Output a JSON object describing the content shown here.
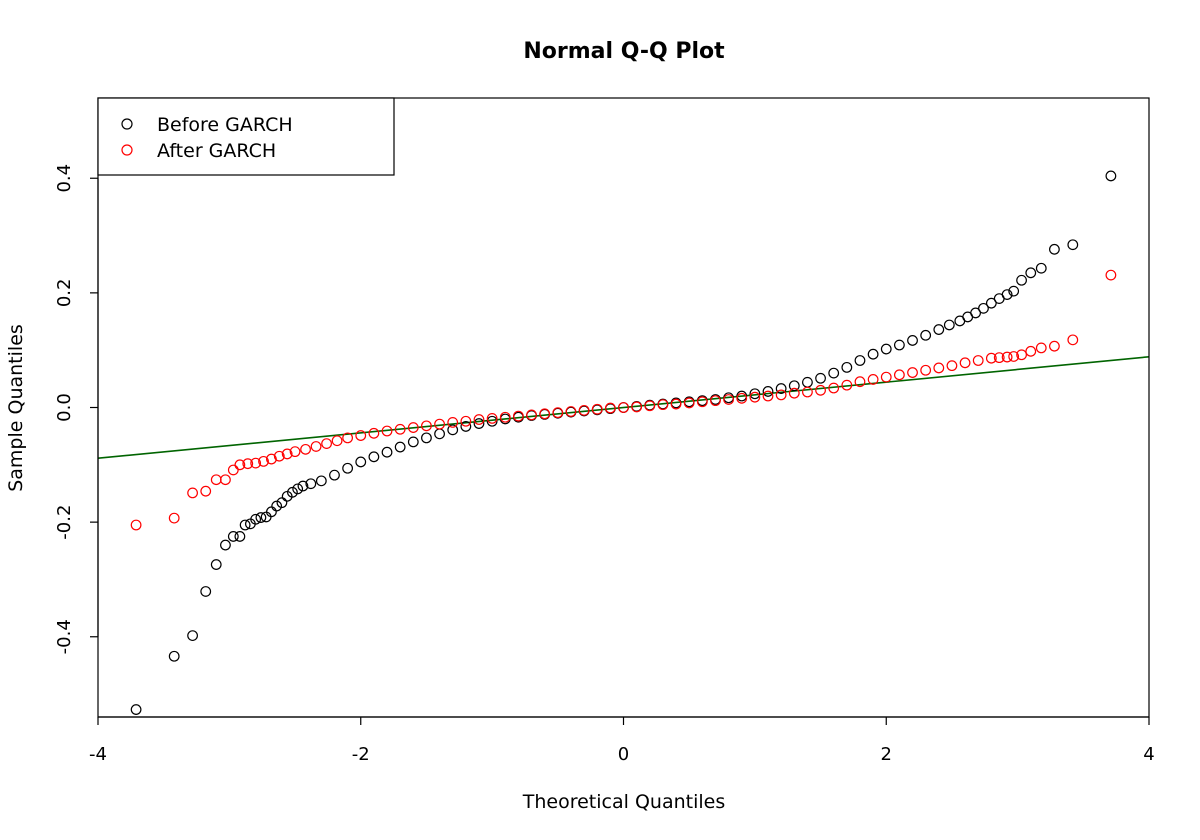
{
  "chart_data": {
    "type": "scatter",
    "title": "Normal Q-Q Plot",
    "xlabel": "Theoretical Quantiles",
    "ylabel": "Sample Quantiles",
    "xlim": [
      -4,
      4
    ],
    "ylim": [
      -0.54,
      0.54
    ],
    "x_ticks": [
      -4,
      -2,
      0,
      2,
      4
    ],
    "x_tick_labels": [
      "-4",
      "-2",
      "0",
      "2",
      "4"
    ],
    "y_ticks": [
      -0.4,
      -0.2,
      0.0,
      0.2,
      0.4
    ],
    "y_tick_labels": [
      "-0.4",
      "-0.2",
      "0.0",
      "0.2",
      "0.4"
    ],
    "grid": false,
    "legend_position": "top-left",
    "series": [
      {
        "name": "Before GARCH",
        "color": "#000000",
        "marker": "open-circle",
        "points": [
          [
            -3.71,
            -0.527
          ],
          [
            -3.42,
            -0.434
          ],
          [
            -3.28,
            -0.398
          ],
          [
            -3.18,
            -0.321
          ],
          [
            -3.1,
            -0.274
          ],
          [
            -3.03,
            -0.24
          ],
          [
            -2.97,
            -0.225
          ],
          [
            -2.92,
            -0.225
          ],
          [
            -2.88,
            -0.205
          ],
          [
            -2.84,
            -0.203
          ],
          [
            -2.8,
            -0.195
          ],
          [
            -2.76,
            -0.192
          ],
          [
            -2.72,
            -0.191
          ],
          [
            -2.68,
            -0.182
          ],
          [
            -2.64,
            -0.172
          ],
          [
            -2.6,
            -0.166
          ],
          [
            -2.56,
            -0.155
          ],
          [
            -2.52,
            -0.148
          ],
          [
            -2.48,
            -0.142
          ],
          [
            -2.44,
            -0.137
          ],
          [
            -2.38,
            -0.133
          ],
          [
            -2.3,
            -0.128
          ],
          [
            -2.2,
            -0.118
          ],
          [
            -2.1,
            -0.106
          ],
          [
            -2.0,
            -0.095
          ],
          [
            -1.9,
            -0.086
          ],
          [
            -1.8,
            -0.078
          ],
          [
            -1.7,
            -0.069
          ],
          [
            -1.6,
            -0.06
          ],
          [
            -1.5,
            -0.053
          ],
          [
            -1.4,
            -0.046
          ],
          [
            -1.3,
            -0.039
          ],
          [
            -1.2,
            -0.033
          ],
          [
            -1.1,
            -0.028
          ],
          [
            -1.0,
            -0.024
          ],
          [
            -0.9,
            -0.02
          ],
          [
            -0.8,
            -0.017
          ],
          [
            -0.7,
            -0.014
          ],
          [
            -0.6,
            -0.012
          ],
          [
            -0.5,
            -0.01
          ],
          [
            -0.4,
            -0.008
          ],
          [
            -0.3,
            -0.006
          ],
          [
            -0.2,
            -0.004
          ],
          [
            -0.1,
            -0.002
          ],
          [
            0.0,
            0.0
          ],
          [
            0.1,
            0.002
          ],
          [
            0.2,
            0.004
          ],
          [
            0.3,
            0.006
          ],
          [
            0.4,
            0.008
          ],
          [
            0.5,
            0.01
          ],
          [
            0.6,
            0.012
          ],
          [
            0.7,
            0.014
          ],
          [
            0.8,
            0.017
          ],
          [
            0.9,
            0.02
          ],
          [
            1.0,
            0.024
          ],
          [
            1.1,
            0.028
          ],
          [
            1.2,
            0.033
          ],
          [
            1.3,
            0.038
          ],
          [
            1.4,
            0.044
          ],
          [
            1.5,
            0.051
          ],
          [
            1.6,
            0.06
          ],
          [
            1.7,
            0.07
          ],
          [
            1.8,
            0.082
          ],
          [
            1.9,
            0.093
          ],
          [
            2.0,
            0.102
          ],
          [
            2.1,
            0.109
          ],
          [
            2.2,
            0.117
          ],
          [
            2.3,
            0.126
          ],
          [
            2.4,
            0.136
          ],
          [
            2.48,
            0.144
          ],
          [
            2.56,
            0.151
          ],
          [
            2.62,
            0.158
          ],
          [
            2.68,
            0.165
          ],
          [
            2.74,
            0.173
          ],
          [
            2.8,
            0.182
          ],
          [
            2.86,
            0.19
          ],
          [
            2.92,
            0.197
          ],
          [
            2.97,
            0.203
          ],
          [
            3.03,
            0.222
          ],
          [
            3.1,
            0.235
          ],
          [
            3.18,
            0.243
          ],
          [
            3.28,
            0.276
          ],
          [
            3.42,
            0.284
          ],
          [
            3.71,
            0.404
          ]
        ]
      },
      {
        "name": "After GARCH",
        "color": "#ff0000",
        "marker": "open-circle",
        "points": [
          [
            -3.71,
            -0.205
          ],
          [
            -3.42,
            -0.193
          ],
          [
            -3.28,
            -0.149
          ],
          [
            -3.18,
            -0.146
          ],
          [
            -3.1,
            -0.126
          ],
          [
            -3.03,
            -0.126
          ],
          [
            -2.97,
            -0.109
          ],
          [
            -2.92,
            -0.1
          ],
          [
            -2.86,
            -0.098
          ],
          [
            -2.8,
            -0.097
          ],
          [
            -2.74,
            -0.094
          ],
          [
            -2.68,
            -0.09
          ],
          [
            -2.62,
            -0.085
          ],
          [
            -2.56,
            -0.081
          ],
          [
            -2.5,
            -0.077
          ],
          [
            -2.42,
            -0.073
          ],
          [
            -2.34,
            -0.068
          ],
          [
            -2.26,
            -0.063
          ],
          [
            -2.18,
            -0.058
          ],
          [
            -2.1,
            -0.053
          ],
          [
            -2.0,
            -0.049
          ],
          [
            -1.9,
            -0.045
          ],
          [
            -1.8,
            -0.041
          ],
          [
            -1.7,
            -0.038
          ],
          [
            -1.6,
            -0.035
          ],
          [
            -1.5,
            -0.032
          ],
          [
            -1.4,
            -0.029
          ],
          [
            -1.3,
            -0.026
          ],
          [
            -1.2,
            -0.024
          ],
          [
            -1.1,
            -0.021
          ],
          [
            -1.0,
            -0.019
          ],
          [
            -0.9,
            -0.017
          ],
          [
            -0.8,
            -0.015
          ],
          [
            -0.7,
            -0.013
          ],
          [
            -0.6,
            -0.011
          ],
          [
            -0.5,
            -0.009
          ],
          [
            -0.4,
            -0.007
          ],
          [
            -0.3,
            -0.005
          ],
          [
            -0.2,
            -0.003
          ],
          [
            -0.1,
            -0.001
          ],
          [
            0.0,
            0.0
          ],
          [
            0.1,
            0.001
          ],
          [
            0.2,
            0.003
          ],
          [
            0.3,
            0.005
          ],
          [
            0.4,
            0.006
          ],
          [
            0.5,
            0.008
          ],
          [
            0.6,
            0.01
          ],
          [
            0.7,
            0.012
          ],
          [
            0.8,
            0.014
          ],
          [
            0.9,
            0.016
          ],
          [
            1.0,
            0.018
          ],
          [
            1.1,
            0.02
          ],
          [
            1.2,
            0.022
          ],
          [
            1.3,
            0.025
          ],
          [
            1.4,
            0.027
          ],
          [
            1.5,
            0.03
          ],
          [
            1.6,
            0.034
          ],
          [
            1.7,
            0.039
          ],
          [
            1.8,
            0.045
          ],
          [
            1.9,
            0.049
          ],
          [
            2.0,
            0.053
          ],
          [
            2.1,
            0.057
          ],
          [
            2.2,
            0.061
          ],
          [
            2.3,
            0.065
          ],
          [
            2.4,
            0.069
          ],
          [
            2.5,
            0.073
          ],
          [
            2.6,
            0.078
          ],
          [
            2.7,
            0.082
          ],
          [
            2.8,
            0.086
          ],
          [
            2.86,
            0.087
          ],
          [
            2.92,
            0.088
          ],
          [
            2.97,
            0.089
          ],
          [
            3.03,
            0.092
          ],
          [
            3.1,
            0.098
          ],
          [
            3.18,
            0.104
          ],
          [
            3.28,
            0.107
          ],
          [
            3.42,
            0.118
          ],
          [
            3.71,
            0.231
          ]
        ]
      }
    ],
    "reference_line": {
      "color": "#006400",
      "from": [
        -4,
        -0.0885
      ],
      "to": [
        4,
        0.0885
      ]
    }
  }
}
